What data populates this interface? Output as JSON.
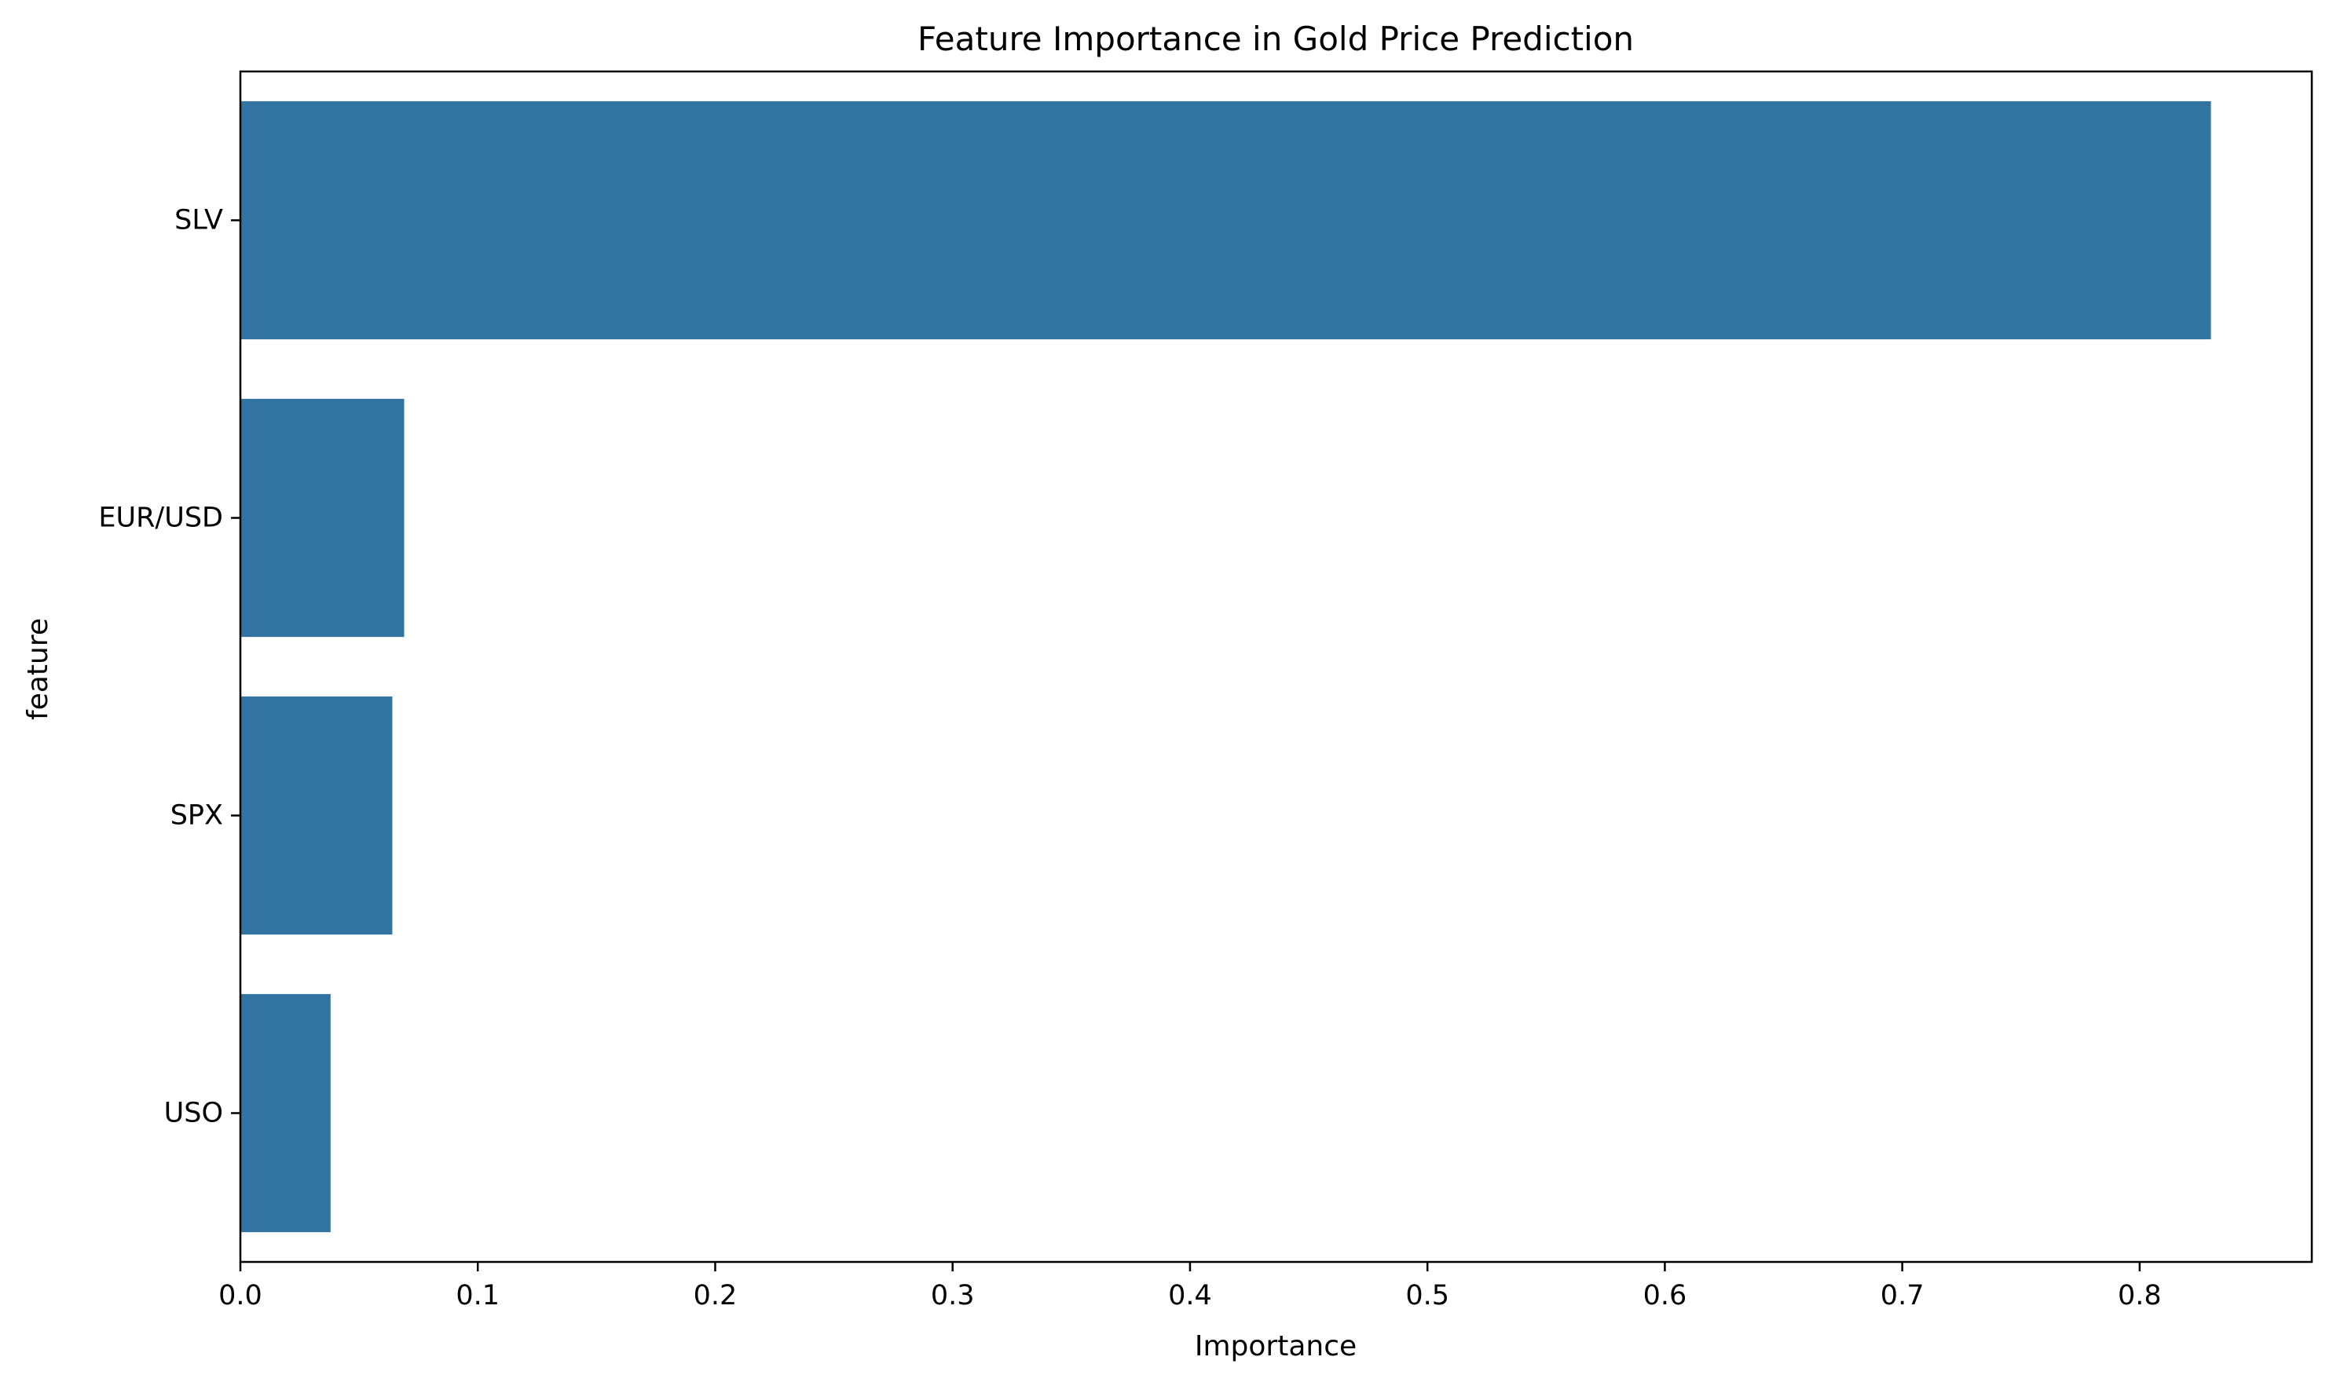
{
  "chart_data": {
    "type": "bar",
    "orientation": "horizontal",
    "title": "Feature Importance in Gold Price Prediction",
    "xlabel": "Importance",
    "ylabel": "feature",
    "categories": [
      "SLV",
      "EUR/USD",
      "SPX",
      "USO"
    ],
    "values": [
      0.83,
      0.069,
      0.064,
      0.038
    ],
    "xlim": [
      0,
      0.8725
    ],
    "xticks": [
      "0.0",
      "0.1",
      "0.2",
      "0.3",
      "0.4",
      "0.5",
      "0.6",
      "0.7",
      "0.8"
    ],
    "grid": false,
    "legend": "none",
    "bar_color": "#3274a1"
  }
}
